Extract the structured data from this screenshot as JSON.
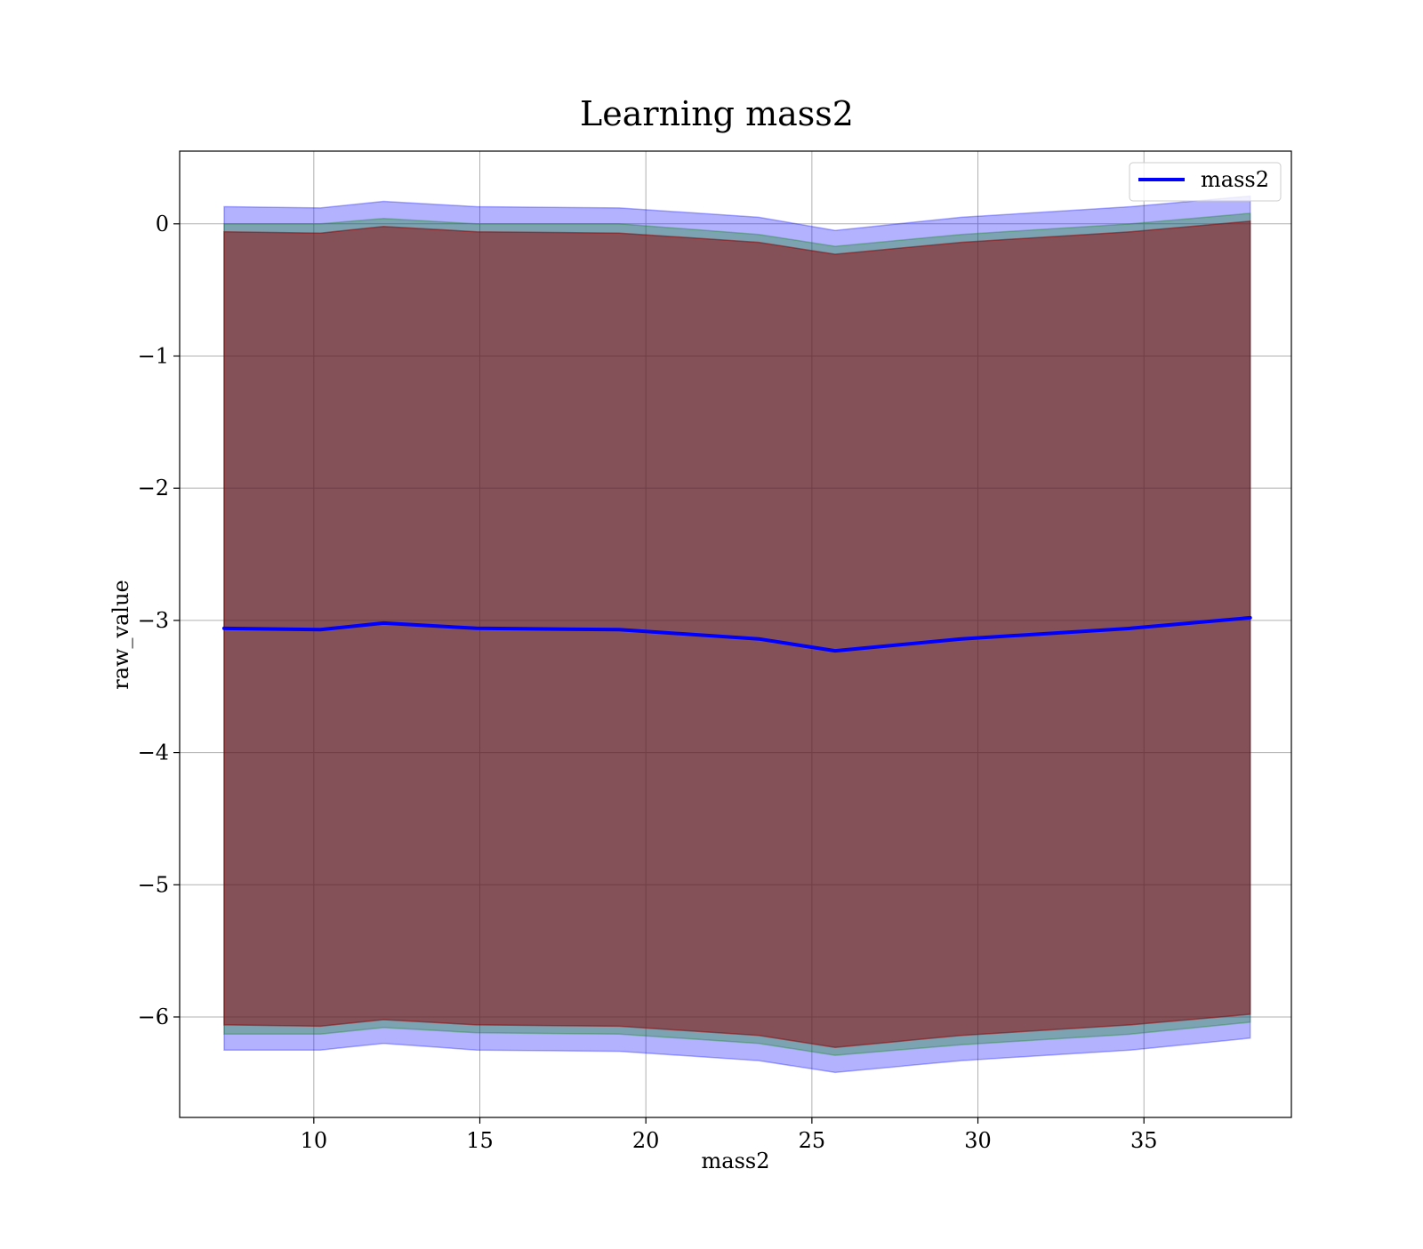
{
  "chart_data": {
    "type": "line",
    "title": "Learning mass2",
    "xlabel": "mass2",
    "ylabel": "raw_value",
    "xlim": [
      5.96,
      39.44
    ],
    "ylim": [
      -6.76,
      0.55
    ],
    "xticks": [
      {
        "value": 10,
        "label": "10"
      },
      {
        "value": 15,
        "label": "15"
      },
      {
        "value": 20,
        "label": "20"
      },
      {
        "value": 25,
        "label": "25"
      },
      {
        "value": 30,
        "label": "30"
      },
      {
        "value": 35,
        "label": "35"
      }
    ],
    "yticks": [
      {
        "value": 0,
        "label": "0"
      },
      {
        "value": -1,
        "label": "−1"
      },
      {
        "value": -2,
        "label": "−2"
      },
      {
        "value": -3,
        "label": "−3"
      },
      {
        "value": -4,
        "label": "−4"
      },
      {
        "value": -5,
        "label": "−5"
      },
      {
        "value": -6,
        "label": "−6"
      }
    ],
    "grid": true,
    "legend_position": "top-right",
    "x": [
      7.3,
      10.2,
      12.1,
      14.9,
      19.2,
      23.4,
      25.7,
      29.5,
      34.6,
      38.2
    ],
    "series": [
      {
        "name": "mass2",
        "color": "#0000ff",
        "values": [
          -3.06,
          -3.07,
          -3.02,
          -3.06,
          -3.07,
          -3.14,
          -3.23,
          -3.14,
          -3.06,
          -2.98
        ]
      }
    ],
    "bands": [
      {
        "color": "#0000ff",
        "opacity": 0.3,
        "lower": [
          -6.25,
          -6.25,
          -6.2,
          -6.25,
          -6.26,
          -6.33,
          -6.42,
          -6.33,
          -6.25,
          -6.16
        ],
        "upper": [
          0.13,
          0.12,
          0.17,
          0.13,
          0.12,
          0.05,
          -0.05,
          0.05,
          0.13,
          0.21
        ]
      },
      {
        "color": "#008000",
        "opacity": 0.3,
        "lower": [
          -6.13,
          -6.13,
          -6.08,
          -6.12,
          -6.13,
          -6.2,
          -6.29,
          -6.21,
          -6.13,
          -6.04
        ],
        "upper": [
          0.0,
          0.0,
          0.04,
          0.0,
          0.0,
          -0.08,
          -0.17,
          -0.08,
          0.0,
          0.08
        ]
      },
      {
        "color": "#8b0000",
        "opacity": 0.5,
        "lower": [
          -6.06,
          -6.07,
          -6.02,
          -6.06,
          -6.07,
          -6.14,
          -6.23,
          -6.14,
          -6.06,
          -5.98
        ],
        "upper": [
          -0.06,
          -0.07,
          -0.02,
          -0.06,
          -0.07,
          -0.14,
          -0.23,
          -0.14,
          -0.06,
          0.02
        ]
      }
    ]
  }
}
